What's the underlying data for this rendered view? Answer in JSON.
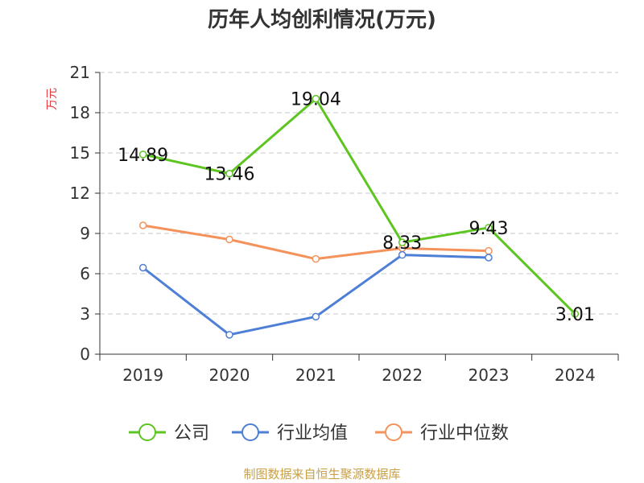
{
  "chart_data": {
    "type": "line",
    "title": "历年人均创利情况(万元)",
    "ylabel": "万元",
    "xlabel": "",
    "categories": [
      "2019",
      "2020",
      "2021",
      "2022",
      "2023",
      "2024"
    ],
    "ylim": [
      0,
      21
    ],
    "yticks": [
      0,
      3,
      6,
      9,
      12,
      15,
      18,
      21
    ],
    "grid": true,
    "legend_position": "bottom",
    "series": [
      {
        "name": "公司",
        "color": "#5dc520",
        "values": [
          14.89,
          13.46,
          19.04,
          8.33,
          9.43,
          3.01
        ],
        "labels": [
          "14.89",
          "13.46",
          "19.04",
          "8.33",
          "9.43",
          "3.01"
        ]
      },
      {
        "name": "行业均值",
        "color": "#4e7fd6",
        "values": [
          6.45,
          1.45,
          2.8,
          7.4,
          7.2,
          null
        ]
      },
      {
        "name": "行业中位数",
        "color": "#f5925b",
        "values": [
          9.6,
          8.55,
          7.1,
          7.9,
          7.7,
          null
        ]
      }
    ],
    "source": "制图数据来自恒生聚源数据库"
  }
}
